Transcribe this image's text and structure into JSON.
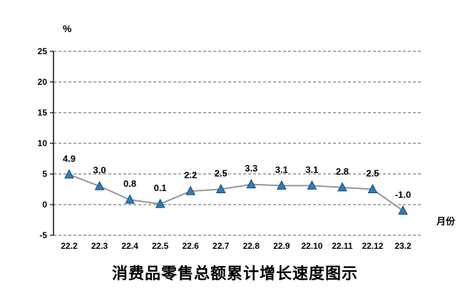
{
  "chart_data": {
    "type": "line",
    "title": "消费品零售总额累计增长速度图示",
    "ylabel_unit": "%",
    "xlabel": "月份",
    "categories": [
      "22.2",
      "22.3",
      "22.4",
      "22.5",
      "22.6",
      "22.7",
      "22.8",
      "22.9",
      "22.10",
      "22.11",
      "22.12",
      "23.2"
    ],
    "values": [
      4.9,
      3.0,
      0.8,
      0.1,
      2.2,
      2.5,
      3.3,
      3.1,
      3.1,
      2.8,
      2.5,
      -1.0
    ],
    "data_labels": [
      "4.9",
      "3.0",
      "0.8",
      "0.1",
      "2.2",
      "2.5",
      "3.3",
      "3.1",
      "3.1",
      "2.8",
      "2.5",
      "-1.0"
    ],
    "ylim": [
      -5,
      25
    ],
    "yticks": [
      -5,
      0,
      5,
      10,
      15,
      20,
      25
    ],
    "grid": "dashed-horizontal",
    "legend": "none",
    "line_color": "#969696",
    "marker_color": "#2e7fae",
    "marker_edge_color": "#1c4587",
    "axis_color": "#000000",
    "grid_color": "#595959",
    "text_color": "#000000"
  }
}
